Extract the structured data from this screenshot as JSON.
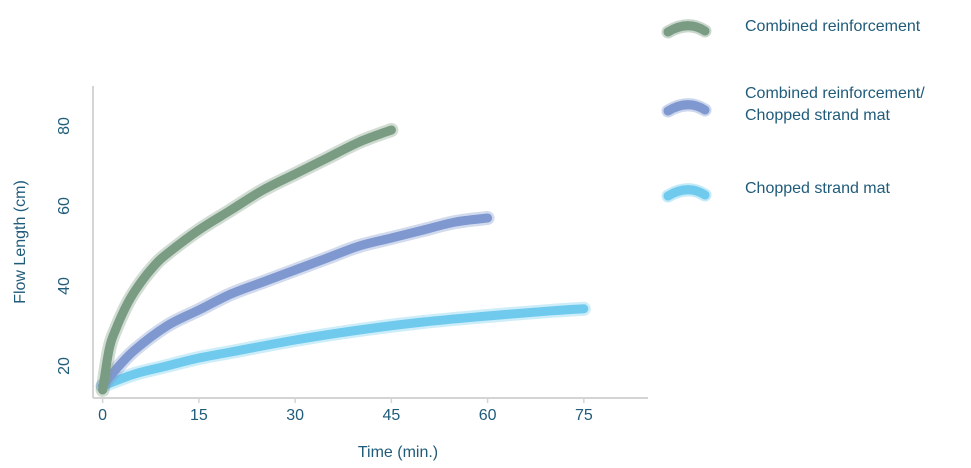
{
  "chart_data": {
    "type": "line",
    "title": "",
    "xlabel": "Time (min.)",
    "ylabel": "Flow Length (cm)",
    "xlim": [
      -1.5,
      85
    ],
    "ylim": [
      12,
      90
    ],
    "xticks": [
      0,
      15,
      30,
      45,
      60,
      75
    ],
    "yticks": [
      20,
      40,
      60,
      80
    ],
    "grid": false,
    "legend_position": "top-right",
    "series": [
      {
        "name": "Combined reinforcement",
        "color": "#7a9c82",
        "x": [
          0,
          1,
          2,
          4,
          6,
          8,
          10,
          15,
          20,
          25,
          30,
          35,
          40,
          45
        ],
        "y": [
          14,
          24,
          29,
          36,
          41,
          45,
          48,
          54,
          59,
          64,
          68,
          72,
          76,
          79
        ]
      },
      {
        "name": "Combined reinforcement/ Chopped strand mat",
        "label_lines": [
          "Combined reinforcement/",
          "Chopped strand mat"
        ],
        "color": "#7f98cf",
        "x": [
          0,
          2,
          5,
          10,
          15,
          20,
          25,
          30,
          35,
          40,
          45,
          50,
          55,
          60
        ],
        "y": [
          15,
          19,
          24,
          30,
          34,
          38,
          41,
          44,
          47,
          50,
          52,
          54,
          56,
          57
        ]
      },
      {
        "name": "Chopped strand mat",
        "color": "#6fcaee",
        "x": [
          0,
          5,
          10,
          15,
          20,
          30,
          40,
          50,
          60,
          70,
          75
        ],
        "y": [
          15,
          18,
          20,
          22,
          23.5,
          26.5,
          29,
          31,
          32.5,
          33.8,
          34.3
        ]
      }
    ]
  }
}
